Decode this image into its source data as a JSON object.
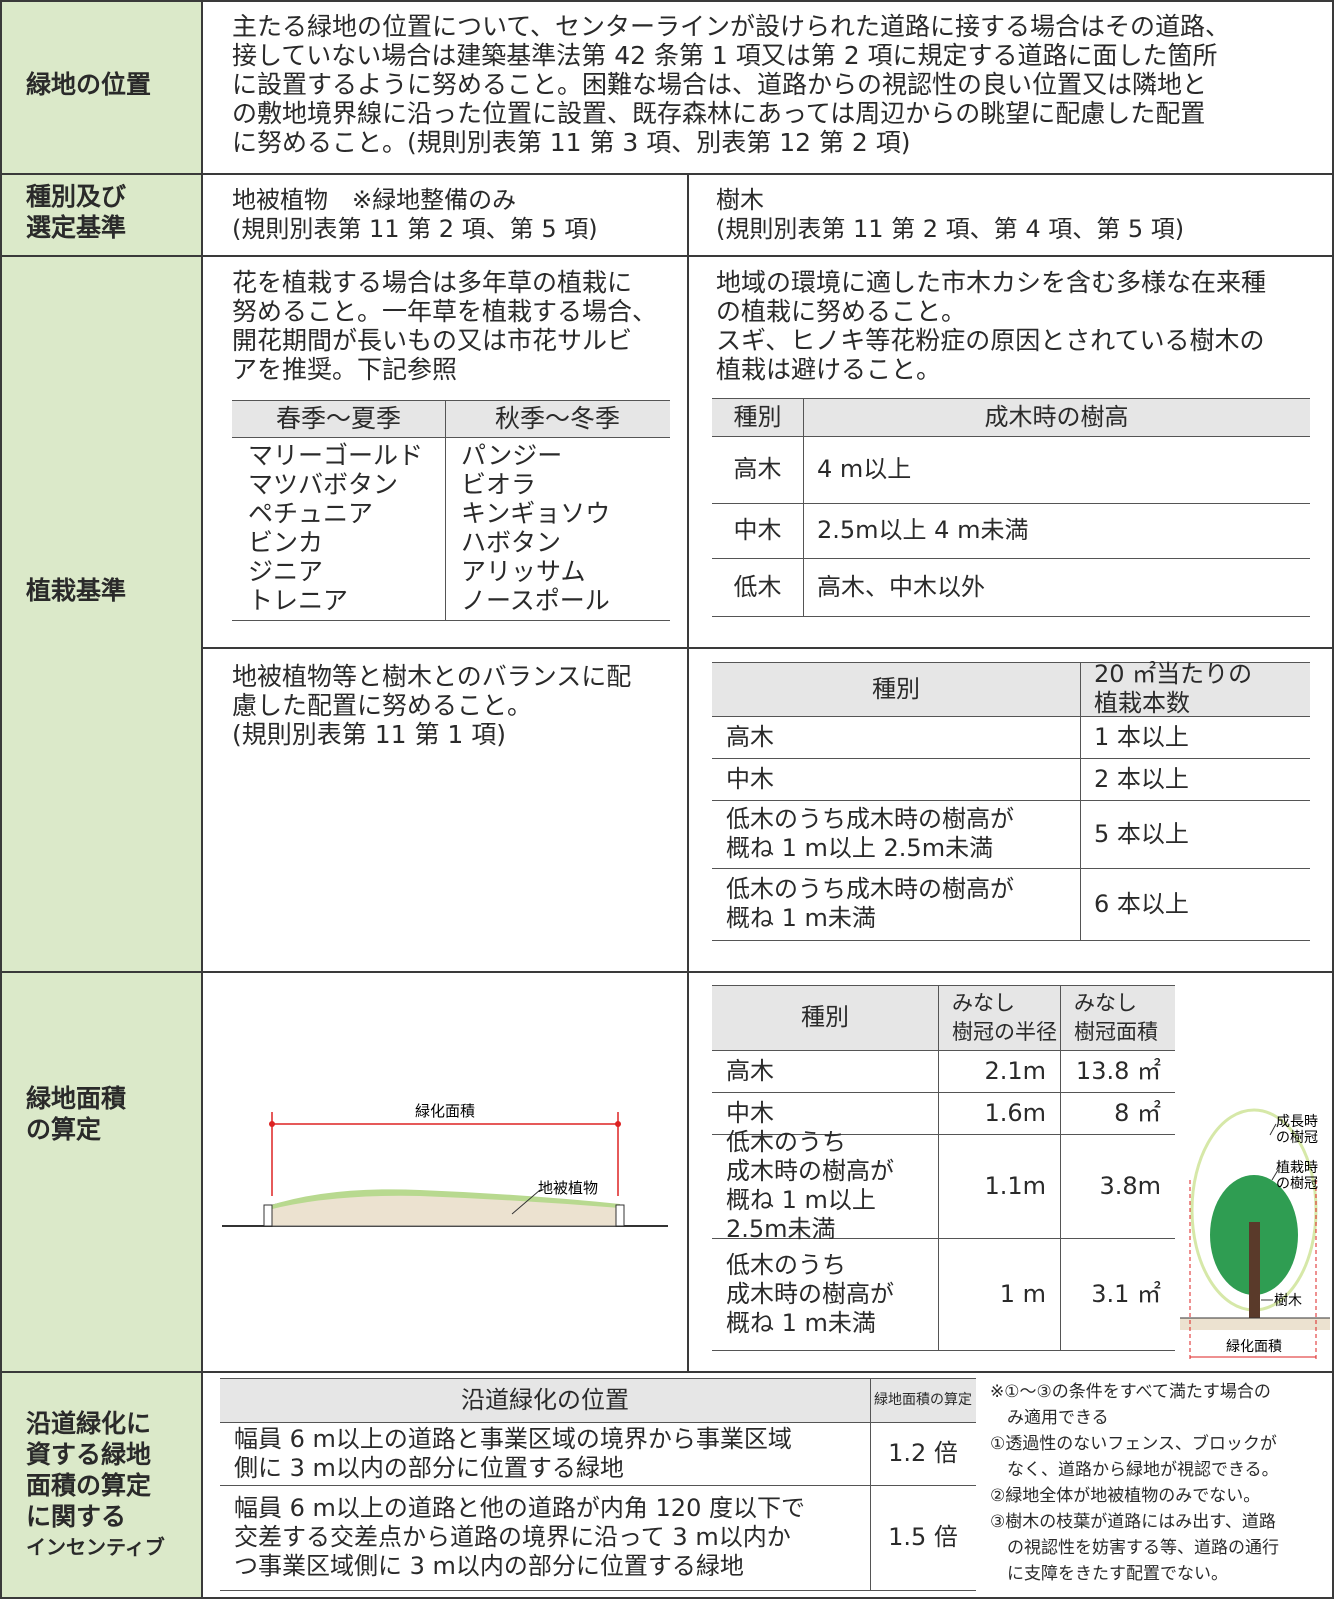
{
  "location": {
    "header": "緑地の位置",
    "lines": [
      "主たる緑地の位置について、センターラインが設けられた道路に接する場合はその道路、",
      "接していない場合は建築基準法第 42 条第 1 項又は第 2 項に規定する道路に面した箇所",
      "に設置するように努めること。困難な場合は、道路からの視認性の良い位置又は隣地と",
      "の敷地境界線に沿った位置に設置、既存森林にあっては周辺からの眺望に配慮した配置",
      "に努めること。(規則別表第 11 第 3 項、別表第 12 第 2 項)"
    ]
  },
  "type_criteria": {
    "header": [
      "種別及び",
      "選定基準"
    ],
    "ground_cover": [
      "地被植物　※緑地整備のみ",
      "(規則別表第 11 第 2 項、第 5 項)"
    ],
    "trees": [
      "樹木",
      "(規則別表第 11 第 2 項、第 4 項、第 5 項)"
    ]
  },
  "planting": {
    "header": "植栽基準",
    "flowers": {
      "lines": [
        "花を植栽する場合は多年草の植栽に",
        "努めること。一年草を植栽する場合、",
        "開花期間が長いもの又は市花サルビ",
        "アを推奨。下記参照"
      ],
      "columns": [
        {
          "header": "春季～夏季",
          "items": [
            "マリーゴールド",
            "マツバボタン",
            "ペチュニア",
            "ビンカ",
            "ジニア",
            "トレニア"
          ]
        },
        {
          "header": "秋季～冬季",
          "items": [
            "パンジー",
            "ビオラ",
            "キンギョソウ",
            "ハボタン",
            "アリッサム",
            "ノースポール"
          ]
        }
      ]
    },
    "trees": {
      "lines": [
        "地域の環境に適した市木カシを含む多様な在来種",
        "の植栽に努めること。",
        "スギ、ヒノキ等花粉症の原因とされている樹木の",
        "植栽は避けること。"
      ],
      "table": {
        "headers": [
          "種別",
          "成木時の樹高"
        ],
        "rows": [
          [
            "高木",
            "4 m以上"
          ],
          [
            "中木",
            "2.5m以上 4 m未満"
          ],
          [
            "低木",
            "高木、中木以外"
          ]
        ]
      }
    },
    "balance": [
      "地被植物等と樹木とのバランスに配",
      "慮した配置に努めること。",
      "(規則別表第 11 第 1 項)"
    ],
    "density": {
      "headers": [
        "種別",
        [
          "20 ㎡当たりの",
          "植栽本数"
        ]
      ],
      "rows": [
        [
          "高木",
          "1 本以上"
        ],
        [
          "中木",
          "2 本以上"
        ],
        [
          [
            "低木のうち成木時の樹高が",
            "概ね 1 m以上 2.5m未満"
          ],
          "5 本以上"
        ],
        [
          [
            "低木のうち成木時の樹高が",
            "概ね 1 m未満"
          ],
          "6 本以上"
        ]
      ]
    }
  },
  "area": {
    "header": [
      "緑地面積",
      "の算定"
    ],
    "diagram": {
      "greening_area": "緑化面積",
      "ground_cover": "地被植物"
    },
    "table": {
      "headers": [
        "種別",
        [
          "みなし",
          "樹冠の半径"
        ],
        [
          "みなし",
          "樹冠面積"
        ]
      ],
      "rows": [
        [
          "高木",
          "2.1m",
          "13.8 ㎡"
        ],
        [
          "中木",
          "1.6m",
          "8 ㎡"
        ],
        [
          [
            "低木のうち",
            "成木時の樹高が",
            "概ね 1 m以上",
            "2.5m未満"
          ],
          "1.1m",
          "3.8m"
        ],
        [
          [
            "低木のうち",
            "成木時の樹高が",
            "概ね 1 m未満"
          ],
          "1 m",
          "3.1 ㎡"
        ]
      ]
    },
    "tree_diagram": {
      "mature_crown": [
        "成長時",
        "の樹冠"
      ],
      "planted_crown": [
        "植栽時",
        "の樹冠"
      ],
      "tree": "樹木",
      "greening_area": "緑化面積"
    }
  },
  "incentive": {
    "header": [
      "沿道緑化に",
      "資する緑地",
      "面積の算定",
      "に関する",
      "インセンティブ"
    ],
    "table": {
      "headers": [
        "沿道緑化の位置",
        "緑地面積の算定"
      ],
      "rows": [
        [
          [
            "幅員 6 m以上の道路と事業区域の境界から事業区域",
            "側に 3 m以内の部分に位置する緑地"
          ],
          "1.2 倍"
        ],
        [
          [
            "幅員 6 m以上の道路と他の道路が内角 120 度以下で",
            "交差する交差点から道路の境界に沿って 3 m以内か",
            "つ事業区域側に 3 m以内の部分に位置する緑地"
          ],
          "1.5 倍"
        ]
      ]
    },
    "notes": [
      "※①～③の条件をすべて満たす場合の",
      "　み適用できる",
      "①透過性のないフェンス、ブロックが",
      "　なく、道路から緑地が視認できる。",
      "②緑地全体が地被植物のみでない。",
      "③樹木の枝葉が道路にはみ出す、道路",
      "　の視認性を妨害する等、道路の通行",
      "　に支障をきたす配置でない。"
    ]
  }
}
